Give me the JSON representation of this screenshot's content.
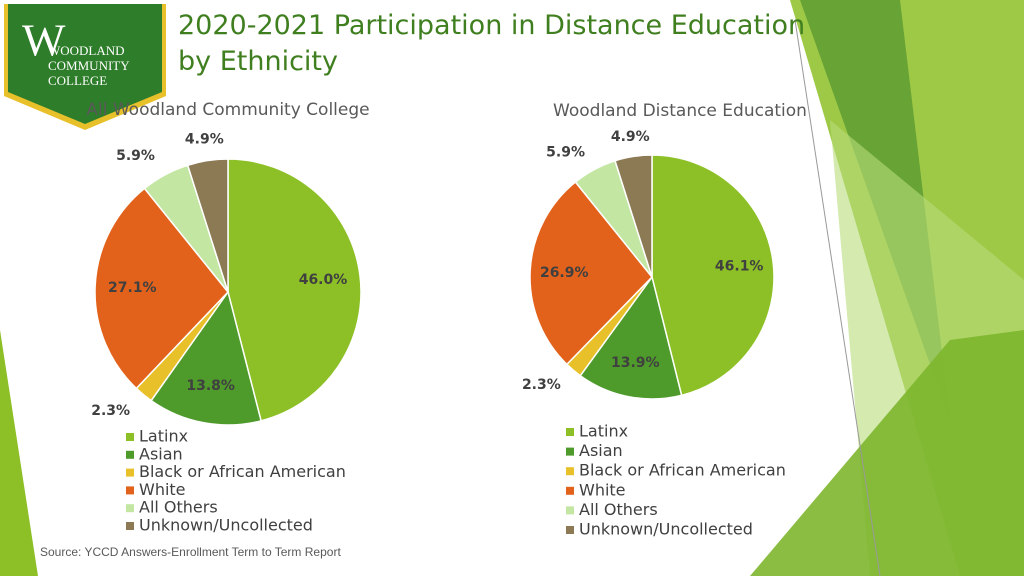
{
  "title": "2020-2021 Participation in Distance Education by Ethnicity",
  "source": "Source: YCCD Answers-Enrollment Term to Term Report",
  "logo": {
    "lines": [
      "WOODLAND",
      "COMMUNITY",
      "COLLEGE"
    ]
  },
  "chart_data": [
    {
      "type": "pie",
      "title": "All Woodland Community College",
      "categories": [
        "Latinx",
        "Asian",
        "Black or African American",
        "White",
        "All Others",
        "Unknown/Uncollected"
      ],
      "values": [
        46.0,
        13.8,
        2.3,
        27.1,
        5.9,
        4.9
      ],
      "value_labels": [
        "46.0%",
        "13.8%",
        "2.3%",
        "27.1%",
        "5.9%",
        "4.9%"
      ],
      "colors": [
        "#8dc026",
        "#4e9a2a",
        "#e8c02a",
        "#e2621b",
        "#c3e6a3",
        "#8c7a55"
      ],
      "legend": "bottom"
    },
    {
      "type": "pie",
      "title": "Woodland Distance Education",
      "categories": [
        "Latinx",
        "Asian",
        "Black or African American",
        "White",
        "All Others",
        "Unknown/Uncollected"
      ],
      "values": [
        46.1,
        13.9,
        2.3,
        26.9,
        5.9,
        4.9
      ],
      "value_labels": [
        "46.1%",
        "13.9%",
        "2.3%",
        "26.9%",
        "5.9%",
        "4.9%"
      ],
      "colors": [
        "#8dc026",
        "#4e9a2a",
        "#e8c02a",
        "#e2621b",
        "#c3e6a3",
        "#8c7a55"
      ],
      "legend": "bottom"
    }
  ]
}
